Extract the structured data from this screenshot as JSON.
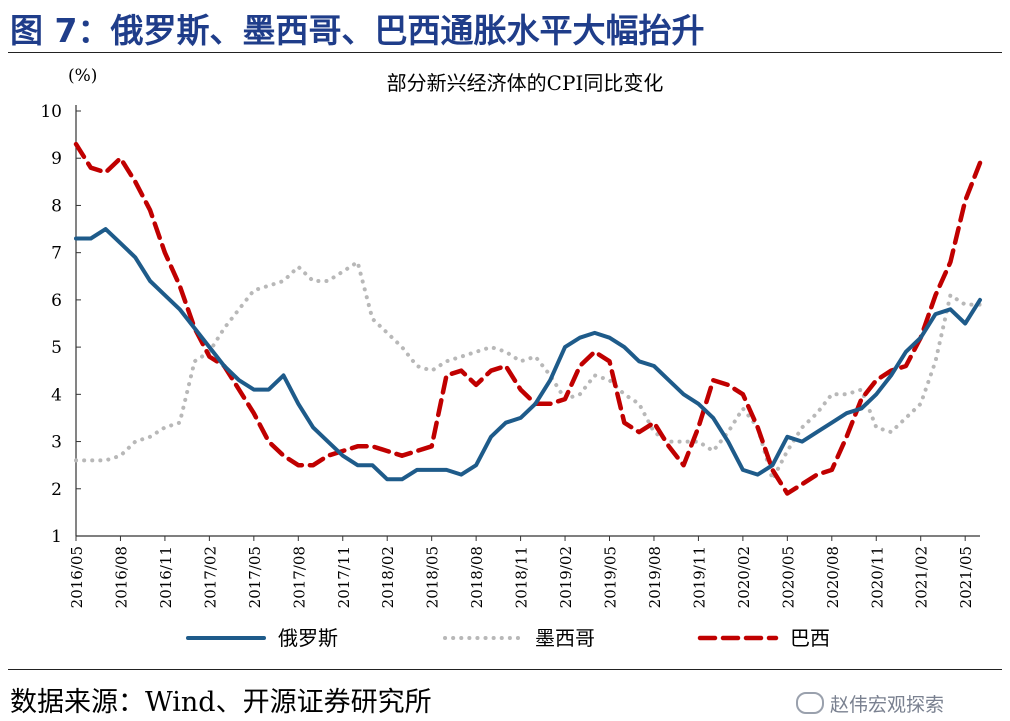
{
  "figure": {
    "title": "图 7：俄罗斯、墨西哥、巴西通胀水平大幅抬升",
    "source": "数据来源：Wind、开源证券研究所",
    "watermark": "赵伟宏观探索"
  },
  "chart_data": {
    "type": "line",
    "title": "部分新兴经济体的CPI同比变化",
    "ylabel": "(%)",
    "xlabel": "",
    "ylim": [
      1,
      10
    ],
    "yticks": [
      "1",
      "2",
      "3",
      "4",
      "5",
      "6",
      "7",
      "8",
      "9",
      "10"
    ],
    "x_tick_labels": [
      "2016/05",
      "2016/08",
      "2016/11",
      "2017/02",
      "2017/05",
      "2017/08",
      "2017/11",
      "2018/02",
      "2018/05",
      "2018/08",
      "2018/11",
      "2019/02",
      "2019/05",
      "2019/08",
      "2019/11",
      "2020/02",
      "2020/05",
      "2020/08",
      "2020/11",
      "2021/02",
      "2021/05"
    ],
    "x": [
      "2016/05",
      "2016/06",
      "2016/07",
      "2016/08",
      "2016/09",
      "2016/10",
      "2016/11",
      "2016/12",
      "2017/01",
      "2017/02",
      "2017/03",
      "2017/04",
      "2017/05",
      "2017/06",
      "2017/07",
      "2017/08",
      "2017/09",
      "2017/10",
      "2017/11",
      "2017/12",
      "2018/01",
      "2018/02",
      "2018/03",
      "2018/04",
      "2018/05",
      "2018/06",
      "2018/07",
      "2018/08",
      "2018/09",
      "2018/10",
      "2018/11",
      "2018/12",
      "2019/01",
      "2019/02",
      "2019/03",
      "2019/04",
      "2019/05",
      "2019/06",
      "2019/07",
      "2019/08",
      "2019/09",
      "2019/10",
      "2019/11",
      "2019/12",
      "2020/01",
      "2020/02",
      "2020/03",
      "2020/04",
      "2020/05",
      "2020/06",
      "2020/07",
      "2020/08",
      "2020/09",
      "2020/10",
      "2020/11",
      "2020/12",
      "2021/01",
      "2021/02",
      "2021/03",
      "2021/04",
      "2021/05",
      "2021/06"
    ],
    "series": [
      {
        "name": "俄罗斯",
        "color": "#1e5b8a",
        "style": "solid",
        "values": [
          7.3,
          7.3,
          7.5,
          7.2,
          6.9,
          6.4,
          6.1,
          5.8,
          5.4,
          5.0,
          4.6,
          4.3,
          4.1,
          4.1,
          4.4,
          3.8,
          3.3,
          3.0,
          2.7,
          2.5,
          2.5,
          2.2,
          2.2,
          2.4,
          2.4,
          2.4,
          2.3,
          2.5,
          3.1,
          3.4,
          3.5,
          3.8,
          4.3,
          5.0,
          5.2,
          5.3,
          5.2,
          5.0,
          4.7,
          4.6,
          4.3,
          4.0,
          3.8,
          3.5,
          3.0,
          2.4,
          2.3,
          2.5,
          3.1,
          3.0,
          3.2,
          3.4,
          3.6,
          3.7,
          4.0,
          4.4,
          4.9,
          5.2,
          5.7,
          5.8,
          5.5,
          6.0
        ]
      },
      {
        "name": "墨西哥",
        "color": "#b8b8b8",
        "style": "dotted",
        "values": [
          2.6,
          2.6,
          2.6,
          2.7,
          3.0,
          3.1,
          3.3,
          3.4,
          4.7,
          4.9,
          5.4,
          5.8,
          6.2,
          6.3,
          6.4,
          6.7,
          6.4,
          6.4,
          6.6,
          6.8,
          5.6,
          5.3,
          5.0,
          4.6,
          4.5,
          4.7,
          4.8,
          4.9,
          5.0,
          4.9,
          4.7,
          4.8,
          4.4,
          3.9,
          4.0,
          4.4,
          4.3,
          4.0,
          3.8,
          3.2,
          3.0,
          3.0,
          3.0,
          2.8,
          3.2,
          3.7,
          3.3,
          2.2,
          2.8,
          3.3,
          3.6,
          4.0,
          4.0,
          4.1,
          3.3,
          3.2,
          3.5,
          3.8,
          4.7,
          6.1,
          5.9,
          5.9
        ]
      },
      {
        "name": "巴西",
        "color": "#c00000",
        "style": "dashed",
        "values": [
          9.3,
          8.8,
          8.7,
          9.0,
          8.5,
          7.9,
          7.0,
          6.3,
          5.4,
          4.8,
          4.6,
          4.1,
          3.6,
          3.0,
          2.7,
          2.5,
          2.5,
          2.7,
          2.8,
          2.9,
          2.9,
          2.8,
          2.7,
          2.8,
          2.9,
          4.4,
          4.5,
          4.2,
          4.5,
          4.6,
          4.1,
          3.8,
          3.8,
          3.9,
          4.6,
          4.9,
          4.7,
          3.4,
          3.2,
          3.4,
          2.9,
          2.5,
          3.3,
          4.3,
          4.2,
          4.0,
          3.3,
          2.4,
          1.9,
          2.1,
          2.3,
          2.4,
          3.1,
          3.9,
          4.3,
          4.5,
          4.6,
          5.2,
          6.1,
          6.8,
          8.1,
          8.9
        ]
      }
    ],
    "legend_position": "bottom"
  }
}
